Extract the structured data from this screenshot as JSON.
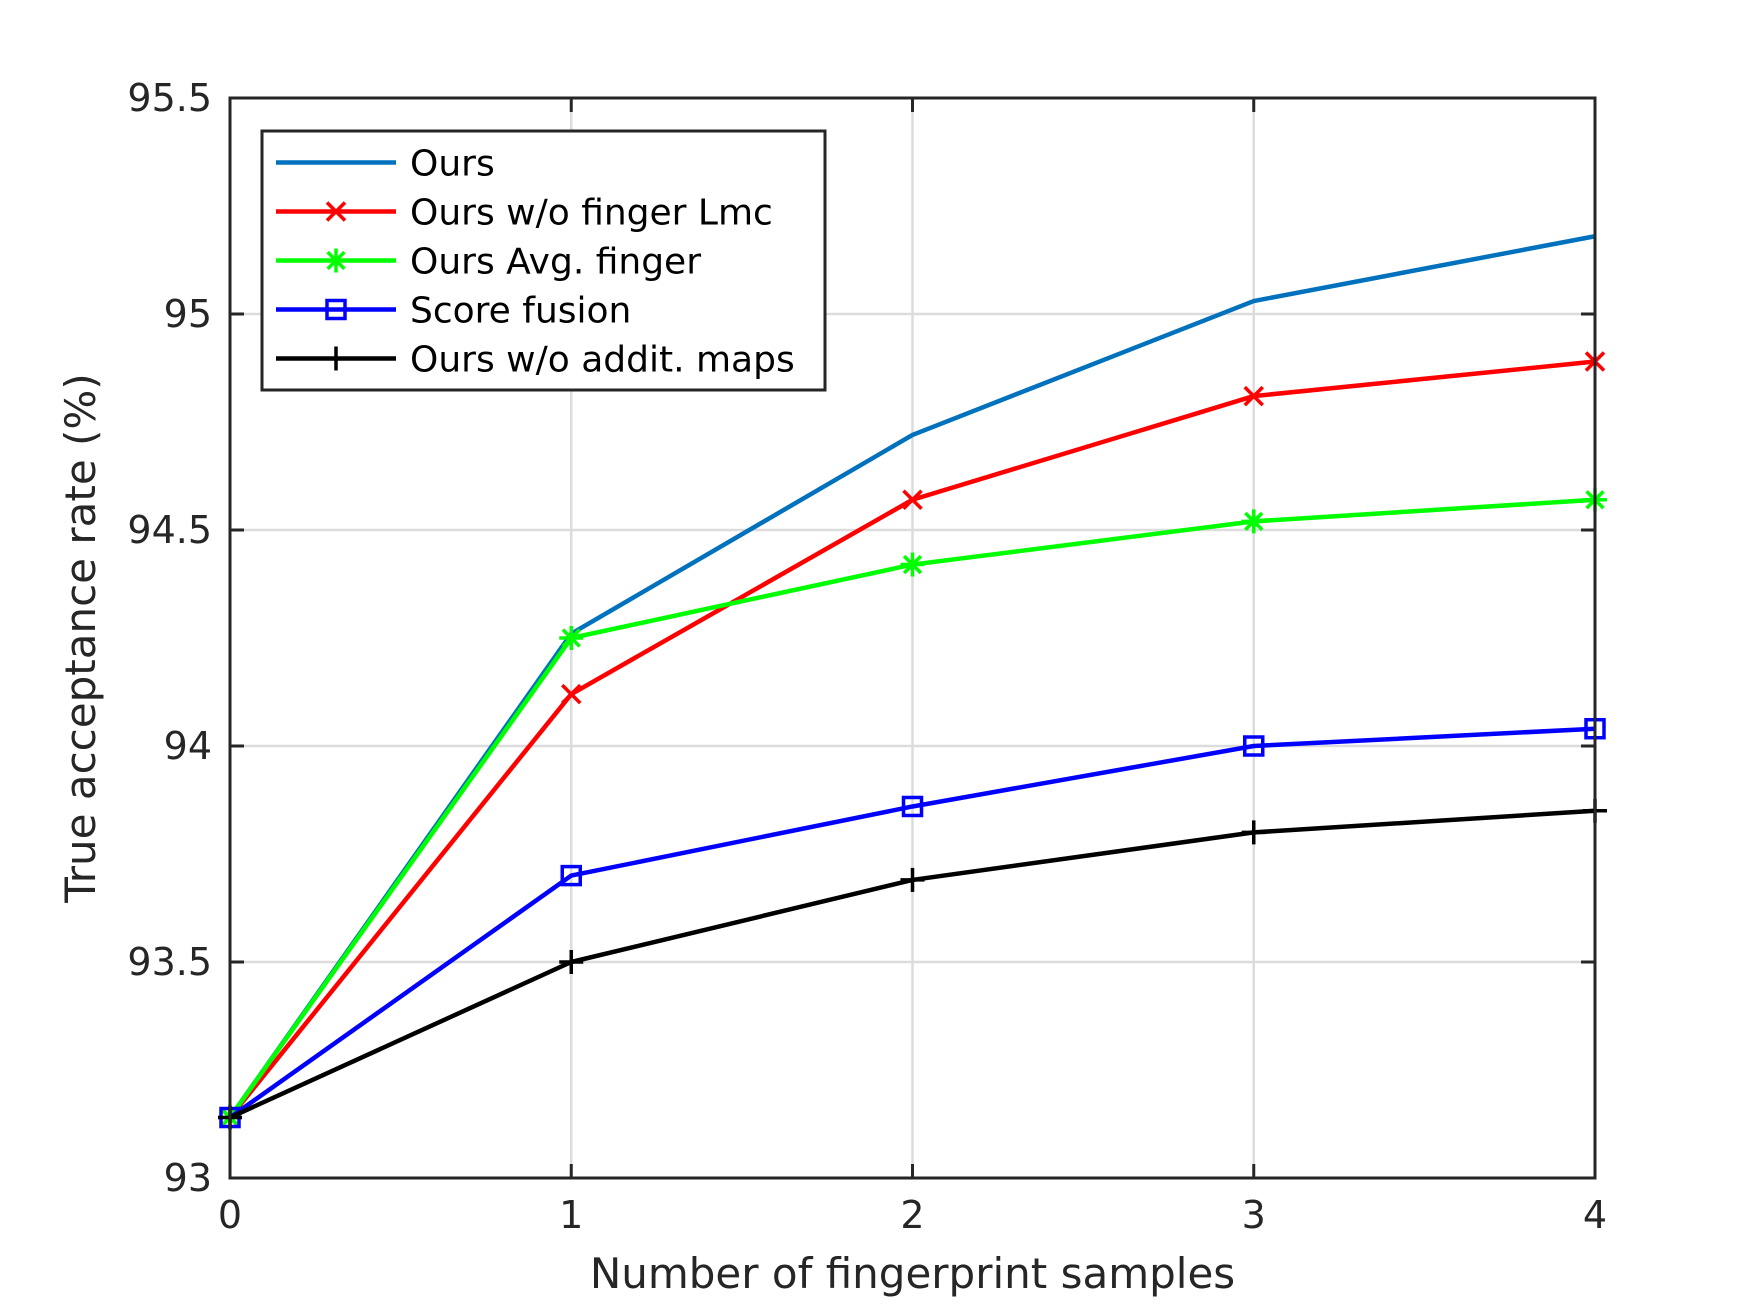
{
  "chart_data": {
    "type": "line",
    "xlabel": "Number of fingerprint samples",
    "ylabel": "True acceptance rate (%)",
    "x": [
      0,
      1,
      2,
      3,
      4
    ],
    "xlim": [
      0,
      4
    ],
    "ylim": [
      93,
      95.5
    ],
    "xticks": [
      "0",
      "1",
      "2",
      "3",
      "4"
    ],
    "yticks": [
      "93",
      "93.5",
      "94",
      "94.5",
      "95",
      "95.5"
    ],
    "grid": true,
    "legend_position": "top-left",
    "series": [
      {
        "name": "Ours",
        "values": [
          93.14,
          94.26,
          94.72,
          95.03,
          95.18
        ],
        "color": "#0072BD",
        "marker": "none"
      },
      {
        "name": "Ours w/o finger Lmc",
        "values": [
          93.14,
          94.12,
          94.57,
          94.81,
          94.89
        ],
        "color": "#FF0000",
        "marker": "x"
      },
      {
        "name": "Ours Avg. finger",
        "values": [
          93.14,
          94.25,
          94.42,
          94.52,
          94.57
        ],
        "color": "#00FF00",
        "marker": "asterisk"
      },
      {
        "name": "Score fusion",
        "values": [
          93.14,
          93.7,
          93.86,
          94.0,
          94.04
        ],
        "color": "#0000FF",
        "marker": "square"
      },
      {
        "name": "Ours w/o addit. maps",
        "values": [
          93.14,
          93.5,
          93.69,
          93.8,
          93.85
        ],
        "color": "#000000",
        "marker": "plus"
      }
    ]
  }
}
